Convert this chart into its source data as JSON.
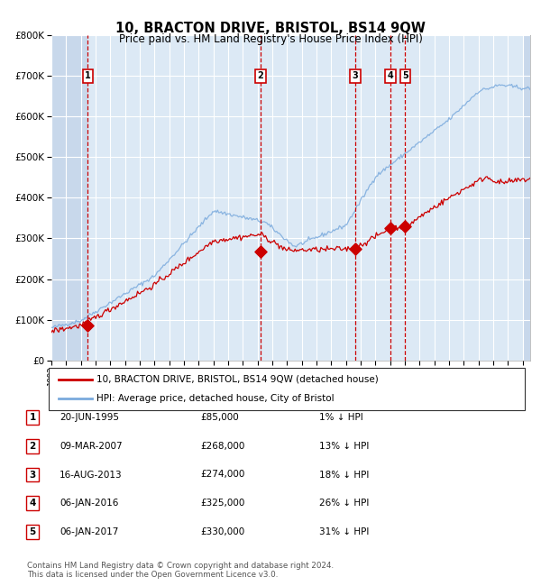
{
  "title": "10, BRACTON DRIVE, BRISTOL, BS14 9QW",
  "subtitle": "Price paid vs. HM Land Registry's House Price Index (HPI)",
  "legend_label_red": "10, BRACTON DRIVE, BRISTOL, BS14 9QW (detached house)",
  "legend_label_blue": "HPI: Average price, detached house, City of Bristol",
  "footer": "Contains HM Land Registry data © Crown copyright and database right 2024.\nThis data is licensed under the Open Government Licence v3.0.",
  "sales": [
    {
      "num": 1,
      "date_str": "20-JUN-1995",
      "price": 85000,
      "pct": "1%",
      "year": 1995.47
    },
    {
      "num": 2,
      "date_str": "09-MAR-2007",
      "price": 268000,
      "pct": "13%",
      "year": 2007.19
    },
    {
      "num": 3,
      "date_str": "16-AUG-2013",
      "price": 274000,
      "pct": "18%",
      "year": 2013.62
    },
    {
      "num": 4,
      "date_str": "06-JAN-2016",
      "price": 325000,
      "pct": "26%",
      "year": 2016.02
    },
    {
      "num": 5,
      "date_str": "06-JAN-2017",
      "price": 330000,
      "pct": "31%",
      "year": 2017.02
    }
  ],
  "background_color": "#dce9f5",
  "hatch_color": "#c8d8eb",
  "grid_color": "#ffffff",
  "red_line_color": "#cc0000",
  "blue_line_color": "#7aaadd",
  "sale_dot_color": "#cc0000",
  "vline_color": "#cc0000",
  "box_edge_color": "#cc0000",
  "ylim": [
    0,
    800000
  ],
  "yticks": [
    0,
    100000,
    200000,
    300000,
    400000,
    500000,
    600000,
    700000,
    800000
  ],
  "ytick_labels": [
    "£0",
    "£100K",
    "£200K",
    "£300K",
    "£400K",
    "£500K",
    "£600K",
    "£700K",
    "£800K"
  ],
  "xlim_start": 1993.0,
  "xlim_end": 2025.5,
  "hatch_left_end": 1995.47,
  "hatch_right_start": 2025.0
}
